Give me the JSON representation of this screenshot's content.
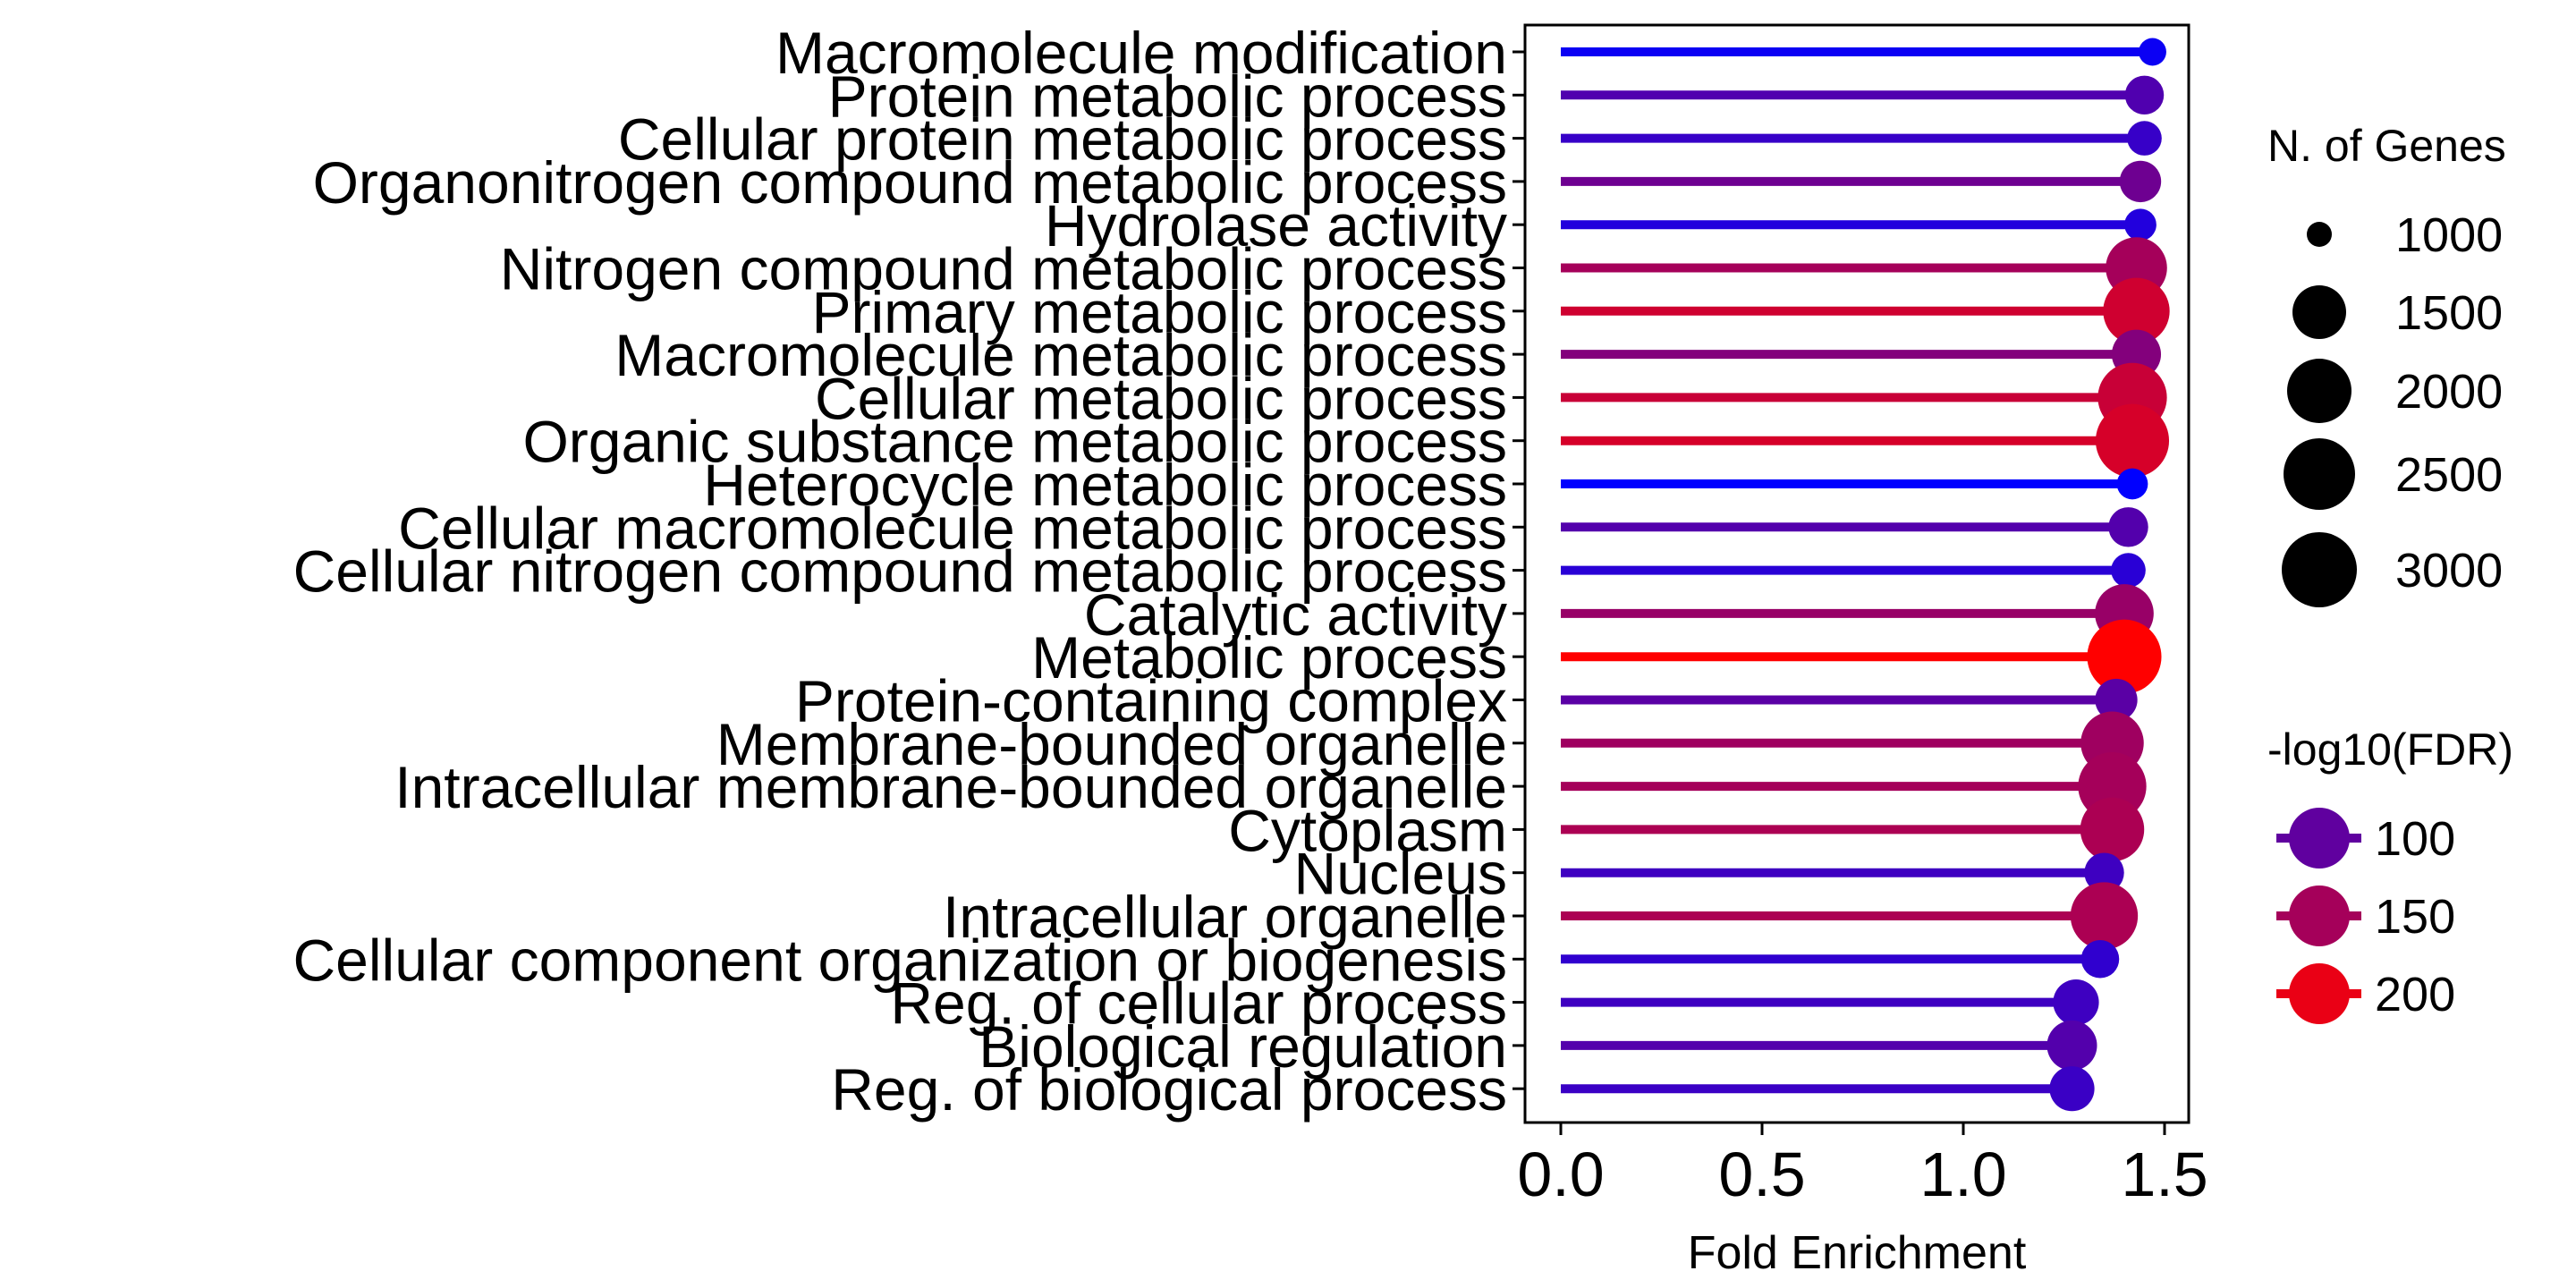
{
  "chart_data": {
    "type": "lollipop",
    "xlabel": "Fold Enrichment",
    "xlim": [
      0,
      1.53
    ],
    "xticks": [
      "0.0",
      "0.5",
      "1.0",
      "1.5"
    ],
    "xtick_values": [
      0,
      0.5,
      1.0,
      1.5
    ],
    "categories": [
      "Macromolecule modification",
      "Protein metabolic process",
      "Cellular protein metabolic process",
      "Organonitrogen compound metabolic process",
      "Hydrolase activity",
      "Nitrogen compound metabolic process",
      "Primary metabolic process",
      "Macromolecule metabolic process",
      "Cellular metabolic process",
      "Organic substance metabolic process",
      "Heterocycle metabolic process",
      "Cellular macromolecule metabolic process",
      "Cellular nitrogen compound metabolic process",
      "Catalytic activity",
      "Metabolic process",
      "Protein-containing complex",
      "Membrane-bounded organelle",
      "Intracellular membrane-bounded organelle",
      "Cytoplasm",
      "Nucleus",
      "Intracellular organelle",
      "Cellular component organization or biogenesis",
      "Reg. of cellular process",
      "Biological regulation",
      "Reg. of biological process"
    ],
    "fold_enrichment": [
      1.47,
      1.45,
      1.45,
      1.44,
      1.44,
      1.43,
      1.43,
      1.43,
      1.42,
      1.42,
      1.42,
      1.41,
      1.41,
      1.4,
      1.4,
      1.38,
      1.37,
      1.37,
      1.37,
      1.35,
      1.35,
      1.34,
      1.28,
      1.27,
      1.27
    ],
    "n_genes": [
      750,
      1400,
      1150,
      1550,
      1000,
      2700,
      3000,
      2000,
      3150,
      3400,
      950,
      1450,
      1150,
      2550,
      3450,
      1600,
      2800,
      3100,
      2850,
      1450,
      3050,
      1350,
      1800,
      2050,
      1750
    ],
    "neg_log10_fdr": [
      38,
      88,
      70,
      110,
      55,
      150,
      180,
      125,
      175,
      185,
      30,
      90,
      60,
      140,
      215,
      95,
      145,
      150,
      155,
      75,
      155,
      65,
      75,
      90,
      72
    ],
    "size_legend": {
      "title": "N. of Genes",
      "values": [
        1000,
        1500,
        2000,
        2500,
        3000
      ],
      "labels": [
        "1000",
        "1500",
        "2000",
        "2500",
        "3000"
      ]
    },
    "color_legend": {
      "title": "-log10(FDR)",
      "values": [
        100,
        150,
        200
      ],
      "labels": [
        "100",
        "150",
        "200"
      ],
      "scale_colors": [
        "#0000ff",
        "#ff0000"
      ],
      "scale_range": [
        30,
        215
      ]
    }
  }
}
